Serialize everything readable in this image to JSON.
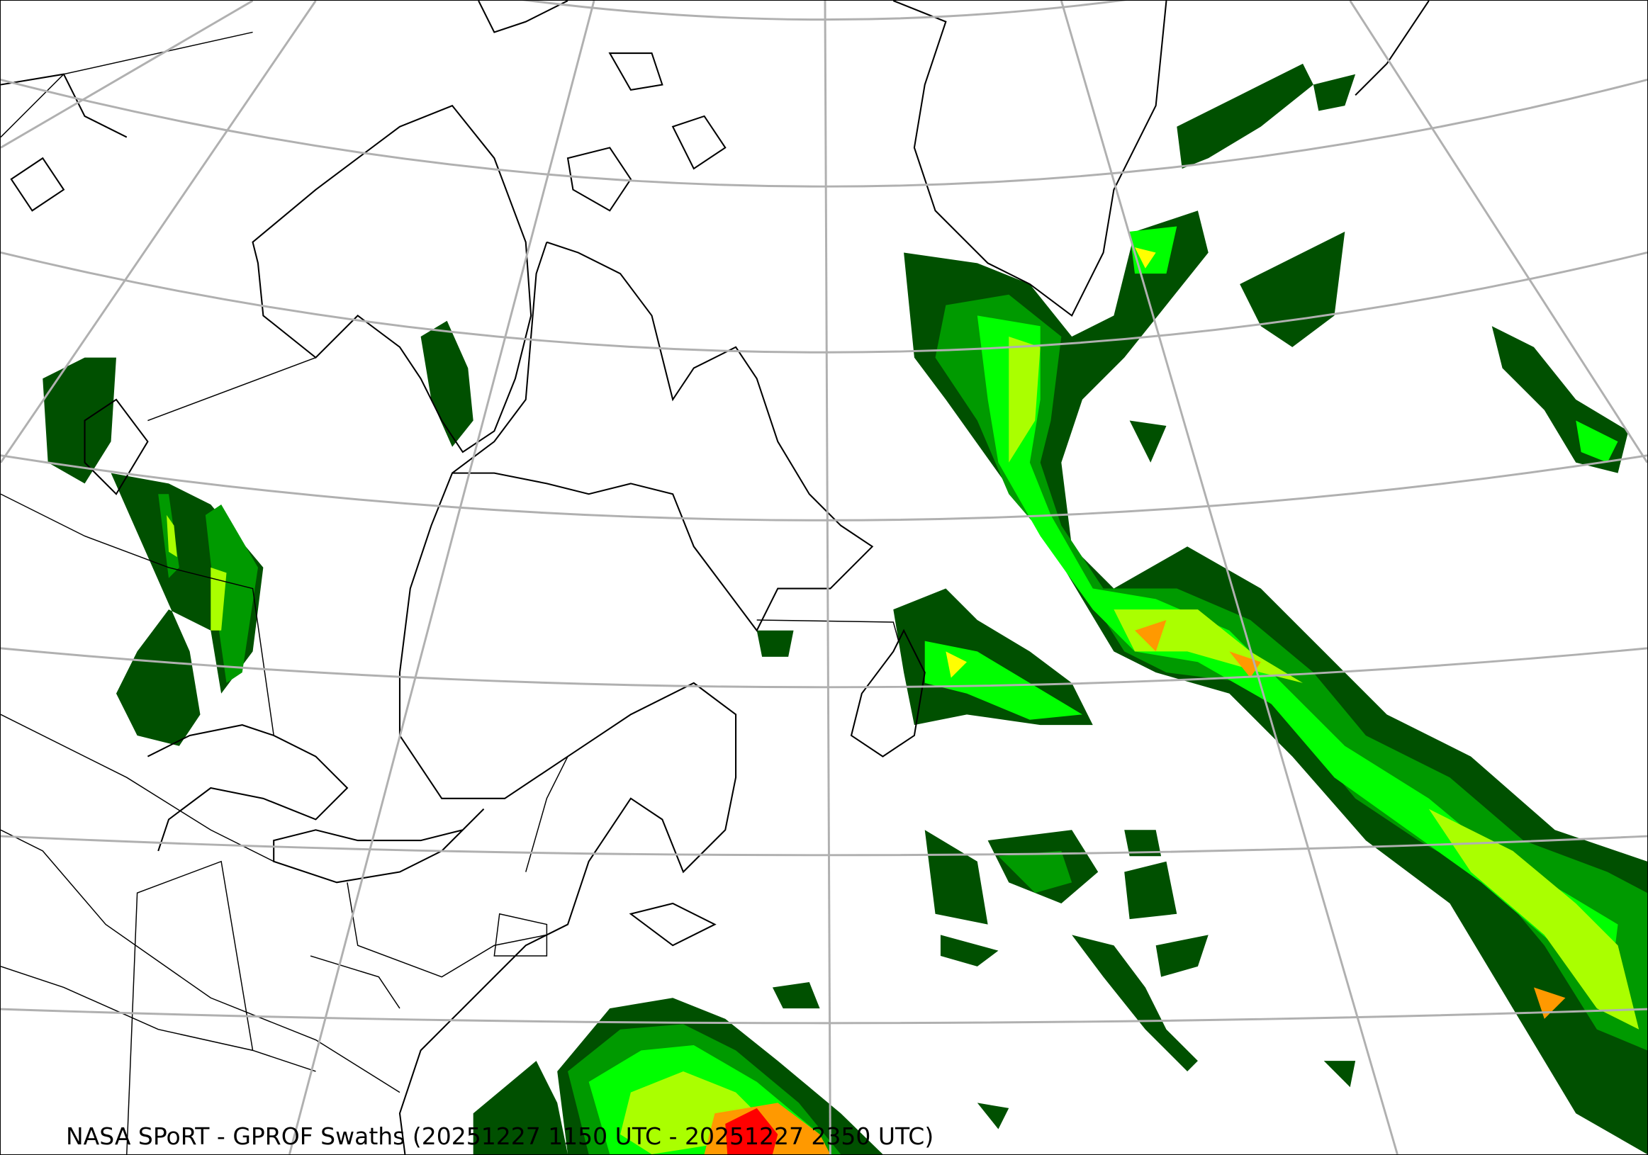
{
  "caption": "NASA SPoRT - GPROF Swaths (20251227 1150 UTC - 20251227 2350 UTC)",
  "map": {
    "projection": "conic",
    "region": "Northeastern North America, Greenland and North Atlantic",
    "graticule_color": "#b0b0b0",
    "coastline_color": "#000000",
    "precip_colors": [
      "#005000",
      "#009a00",
      "#00ff00",
      "#aaff00",
      "#ffff00",
      "#ff9900",
      "#ff0000"
    ]
  }
}
